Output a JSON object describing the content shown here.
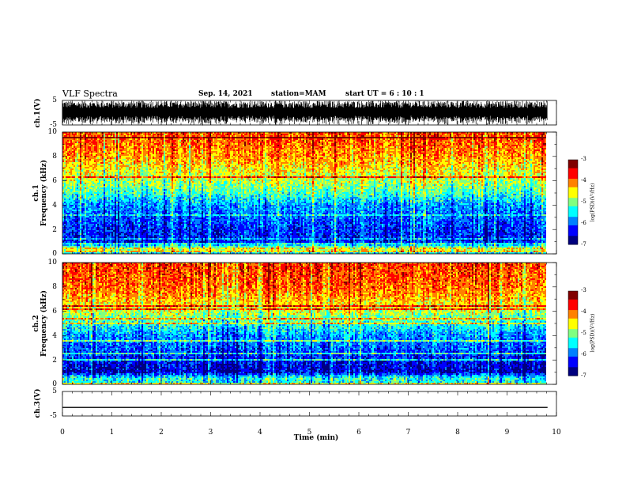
{
  "header": {
    "title": "VLF Spectra",
    "date": "Sep. 14, 2021",
    "station": "station=MAM",
    "start": "start UT =  6 : 10 : 1"
  },
  "panels": {
    "ch1_wave": {
      "ylabel": "ch.1(V)",
      "yticks": [
        "5",
        "-5"
      ]
    },
    "ch1_spec": {
      "ylabel_line1": "ch.1",
      "ylabel_line2": "Frequency (kHz)",
      "yticks": [
        "10",
        "8",
        "6",
        "4",
        "2",
        "0"
      ]
    },
    "ch2_spec": {
      "ylabel_line1": "ch.2",
      "ylabel_line2": "Frequency (kHz)",
      "yticks": [
        "10",
        "8",
        "6",
        "4",
        "2",
        "0"
      ]
    },
    "ch3_wave": {
      "ylabel": "ch.3(V)",
      "yticks": [
        "5",
        "-5"
      ]
    }
  },
  "colorbar": {
    "label": "log(PSD)(V²/Hz)",
    "ticks": [
      "-3",
      "-4",
      "-5",
      "-6",
      "-7"
    ]
  },
  "xaxis": {
    "label": "Time (min)",
    "ticks": [
      "0",
      "1",
      "2",
      "3",
      "4",
      "5",
      "6",
      "7",
      "8",
      "9",
      "10"
    ]
  },
  "colors": {
    "colormap": [
      "#00007f",
      "#0000ff",
      "#0080ff",
      "#00ffff",
      "#80ff80",
      "#ffff00",
      "#ff8000",
      "#ff0000",
      "#800000"
    ],
    "trace": "#000000"
  },
  "chart_data": {
    "type": "heatmap",
    "title": "VLF Spectra",
    "x_range_min": [
      0,
      10
    ],
    "data_end_min": 9.82,
    "frequency_range_khz": [
      0,
      10
    ],
    "log_psd_range": [
      -7,
      -3
    ],
    "ch1_voltage_range": [
      -5,
      5
    ],
    "ch3_voltage_range": [
      -5,
      5
    ],
    "ch3_dc_level_V": -1.5,
    "ch1_psd_profile": {
      "freq_khz": [
        0,
        0.5,
        1,
        2,
        3,
        4,
        5,
        6,
        7,
        8,
        9,
        10
      ],
      "log_psd": [
        -5.5,
        -5.0,
        -6.3,
        -6.2,
        -6.0,
        -5.8,
        -5.2,
        -4.8,
        -4.5,
        -4.2,
        -4.0,
        -3.9
      ]
    },
    "ch2_psd_profile": {
      "freq_khz": [
        0,
        0.5,
        1,
        2,
        3,
        4,
        5,
        6,
        7,
        8,
        9,
        10
      ],
      "log_psd": [
        -5.5,
        -5.3,
        -6.5,
        -6.3,
        -6.0,
        -5.8,
        -5.3,
        -4.7,
        -4.3,
        -4.0,
        -3.9,
        -3.8
      ]
    }
  }
}
